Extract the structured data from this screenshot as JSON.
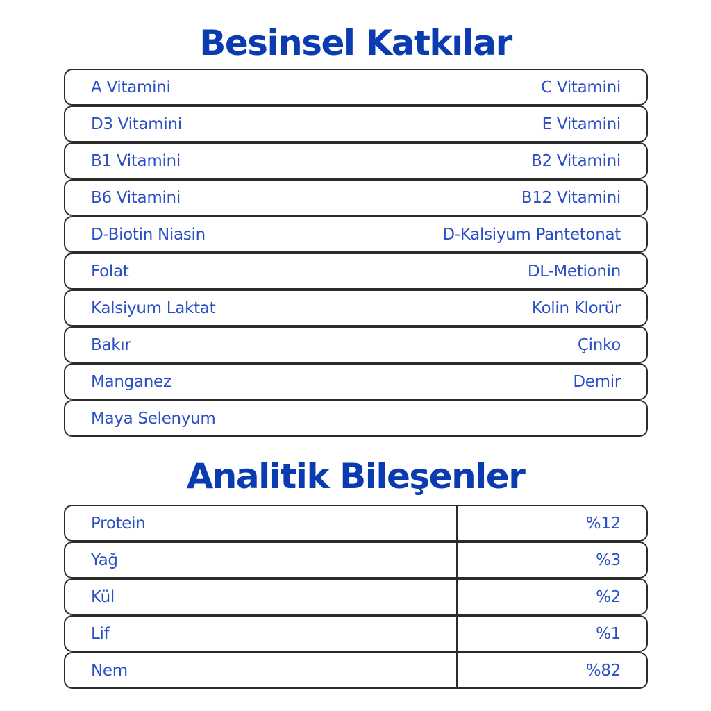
{
  "additives": {
    "title": "Besinsel Katkılar",
    "rows": [
      {
        "left": "A Vitamini",
        "right": "C Vitamini"
      },
      {
        "left": "D3 Vitamini",
        "right": "E Vitamini"
      },
      {
        "left": "B1 Vitamini",
        "right": "B2 Vitamini"
      },
      {
        "left": "B6 Vitamini",
        "right": "B12 Vitamini"
      },
      {
        "left": "D-Biotin Niasin",
        "right": "D-Kalsiyum Pantetonat"
      },
      {
        "left": "Folat",
        "right": "DL-Metionin"
      },
      {
        "left": "Kalsiyum Laktat",
        "right": "Kolin Klorür"
      },
      {
        "left": "Bakır",
        "right": "Çinko"
      },
      {
        "left": "Manganez",
        "right": "Demir"
      },
      {
        "left": "Maya Selenyum",
        "right": ""
      }
    ]
  },
  "analytics": {
    "title": "Analitik Bileşenler",
    "rows": [
      {
        "name": "Protein",
        "value": "%12"
      },
      {
        "name": "Yağ",
        "value": "%3"
      },
      {
        "name": "Kül",
        "value": "%2"
      },
      {
        "name": "Lif",
        "value": "%1"
      },
      {
        "name": "Nem",
        "value": "%82"
      }
    ]
  },
  "colors": {
    "title": "#0a3bb0",
    "text": "#2a4fc4",
    "border": "#2b2b2b"
  }
}
